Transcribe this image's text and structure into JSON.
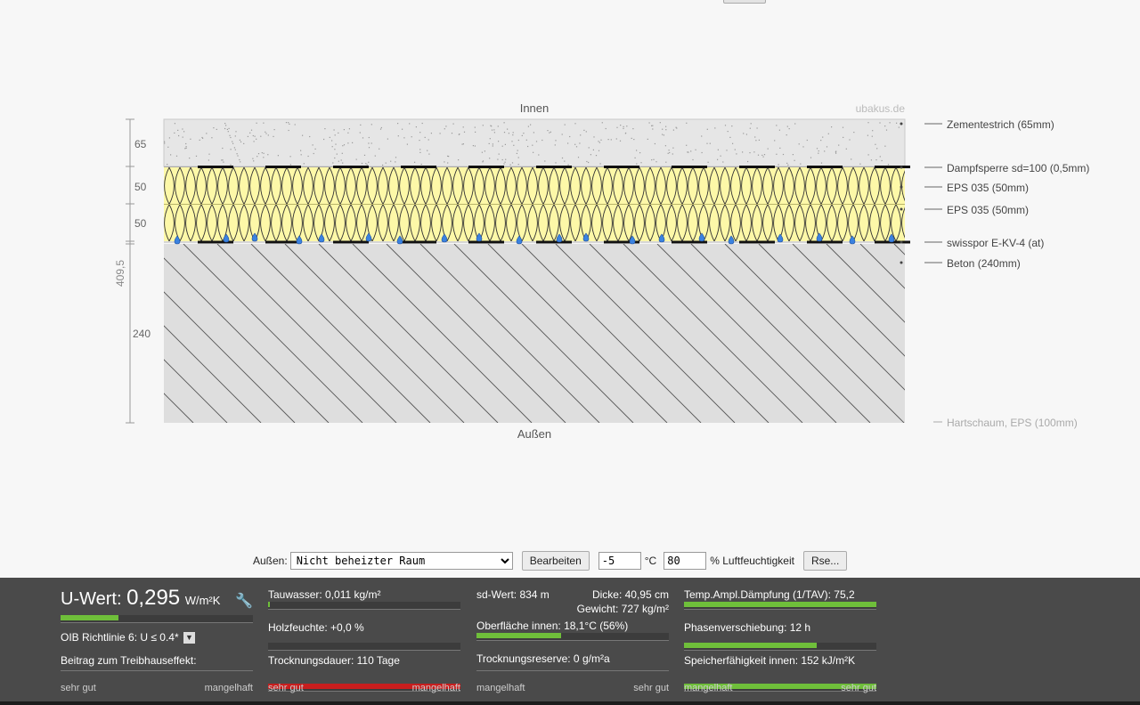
{
  "diagram": {
    "inside_label": "Innen",
    "outside_label": "Außen",
    "watermark": "ubakus.de",
    "dimension_total": "409,5",
    "dimensions": [
      "65",
      "50",
      "50",
      "240"
    ],
    "layers": [
      {
        "name": "Zementestrich (65mm)",
        "thickness_mm": 65
      },
      {
        "name": "Dampfsperre sd=100 (0,5mm)",
        "thickness_mm": 0.5
      },
      {
        "name": "EPS 035 (50mm)",
        "thickness_mm": 50
      },
      {
        "name": "EPS 035 (50mm)",
        "thickness_mm": 50
      },
      {
        "name": "swisspor E-KV-4 (at)",
        "thickness_mm": 4
      },
      {
        "name": "Beton (240mm)",
        "thickness_mm": 240
      }
    ],
    "extra_legend": "Hartschaum, EPS (100mm)",
    "colors": {
      "estrich": "#e6e6e6",
      "eps": "#fdf8a8",
      "beton": "#dedede",
      "drop": "#3b82e0"
    }
  },
  "controls": {
    "aussen_label": "Außen:",
    "aussen_value": "Nicht beheizter Raum",
    "edit_button": "Bearbeiten",
    "temp_value": "-5",
    "temp_unit": "°C",
    "humidity_value": "80",
    "humidity_unit": "% Luftfeuchtigkeit",
    "rse_button": "Rse..."
  },
  "results": {
    "uwert": {
      "label": "U-Wert:",
      "value": "0,295",
      "unit": "W/m²K",
      "progress": 0.3
    },
    "oib": "OIB Richtlinie 6: U ≤ 0.4*",
    "treibhaus": "Beitrag zum Treibhauseffekt:",
    "col1_scale": {
      "left": "sehr gut",
      "right": "mangelhaft"
    },
    "tauwasser": {
      "label": "Tauwasser: 0,011 kg/m²",
      "progress": 0.01
    },
    "holzfeuchte": {
      "label": "Holzfeuchte: +0,0 %",
      "progress": 0.0
    },
    "trocknungsdauer": {
      "label": "Trocknungsdauer: 110 Tage",
      "progress": 1.0
    },
    "col2_scale": {
      "left": "sehr gut",
      "right": "mangelhaft"
    },
    "sdwert": {
      "label": "sd-Wert: 834 m",
      "dicke": "Dicke: 40,95 cm",
      "gewicht": "Gewicht: 727 kg/m²"
    },
    "oberflaeche": {
      "label": "Oberfläche innen: 18,1°C (56%)",
      "progress": 0.44
    },
    "trocknungsreserve": {
      "label": "Trocknungsreserve: 0 g/m²a",
      "progress": 0.0
    },
    "col3_scale": {
      "left": "mangelhaft",
      "right": "sehr gut"
    },
    "temp_ampl": {
      "label": "Temp.Ampl.Dämpfung (1/TAV): 75,2",
      "progress": 1.0
    },
    "phasen": {
      "label": "Phasenverschiebung: 12 h",
      "progress": 0.69
    },
    "speicher": {
      "label": "Speicherfähigkeit innen: 152 kJ/m²K",
      "progress": 1.0
    },
    "col4_scale": {
      "left": "mangelhaft",
      "right": "sehr gut"
    }
  }
}
